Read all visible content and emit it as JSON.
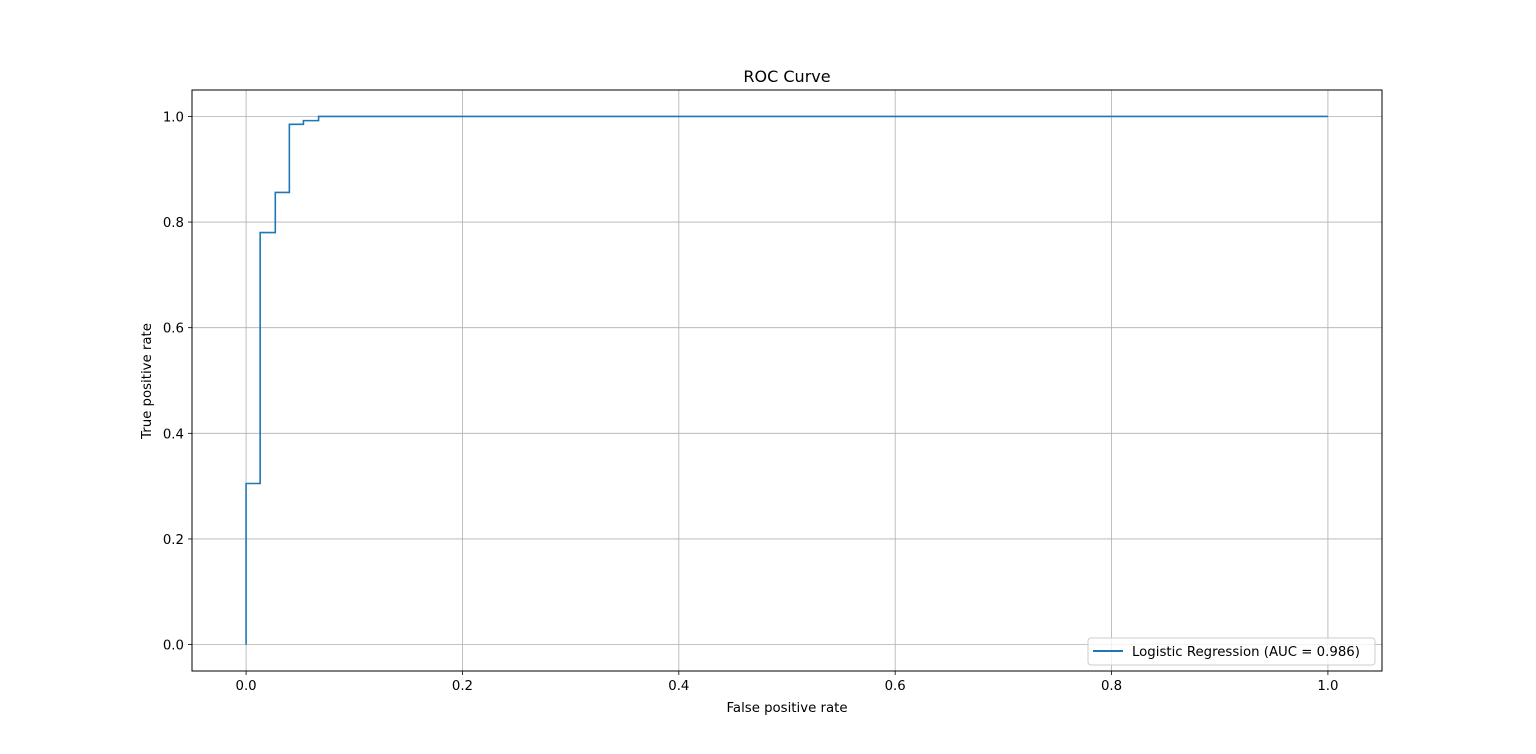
{
  "chart_data": {
    "type": "line",
    "title": "ROC Curve",
    "xlabel": "False positive rate",
    "ylabel": "True positive rate",
    "xlim": [
      -0.05,
      1.05
    ],
    "ylim": [
      -0.05,
      1.05
    ],
    "grid": true,
    "legend_position": "lower-right",
    "x_ticks": [
      0.0,
      0.2,
      0.4,
      0.6,
      0.8,
      1.0
    ],
    "x_tick_labels": [
      "0.0",
      "0.2",
      "0.4",
      "0.6",
      "0.8",
      "1.0"
    ],
    "y_ticks": [
      0.0,
      0.2,
      0.4,
      0.6,
      0.8,
      1.0
    ],
    "y_tick_labels": [
      "0.0",
      "0.2",
      "0.4",
      "0.6",
      "0.8",
      "1.0"
    ],
    "series": [
      {
        "name": "Logistic Regression (AUC = 0.986)",
        "color": "#1f77b4",
        "x": [
          0.0,
          0.0,
          0.013,
          0.013,
          0.027,
          0.027,
          0.04,
          0.04,
          0.053,
          0.053,
          0.067,
          0.067,
          1.0
        ],
        "y": [
          0.0,
          0.305,
          0.305,
          0.78,
          0.78,
          0.856,
          0.856,
          0.985,
          0.985,
          0.992,
          0.992,
          1.0,
          1.0
        ]
      }
    ]
  }
}
